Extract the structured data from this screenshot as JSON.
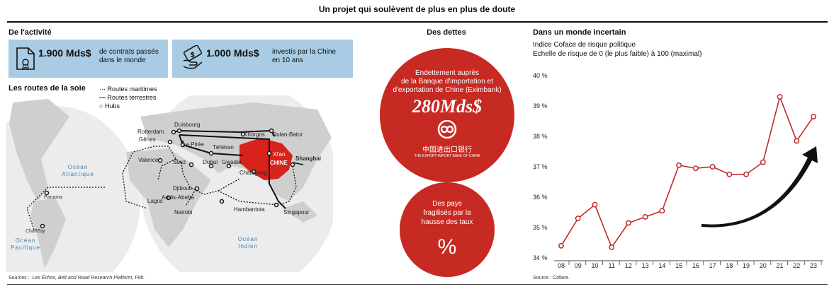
{
  "title": "Un projet qui soulèvent de plus en plus de doute",
  "activity": {
    "heading": "De l'activité",
    "stat1_value": "1.900 Mds$",
    "stat1_text_line1": "de contrats passés",
    "stat1_text_line2": "dans le monde",
    "stat2_value": "1.000 Mds$",
    "stat2_text_line1": "investis par la Chine",
    "stat2_text_line2": "en 10 ans"
  },
  "map": {
    "heading": "Les routes de la soie",
    "legend": {
      "maritime": "Routes maritimes",
      "land": "Routes terrestres",
      "hubs": "Hubs"
    },
    "cities": {
      "duisbourg": "Duisbourg",
      "rotterdam": "Rotterdam",
      "genes": "Gênes",
      "lepiree": "Le Pirée",
      "khorgos": "Khorgos",
      "oulanbator": "Oulan-Bator",
      "teheran": "Téhéran",
      "xian": "Xi'an",
      "shanghai": "Shanghai",
      "valence": "Valence",
      "suez": "Suez",
      "dubai": "Dubaï",
      "gwadar": "Gwadar",
      "chittagong": "Chittagong",
      "djibouti": "Djibouti",
      "addis": "Addis-Abeba",
      "lagos": "Lagos",
      "nairobi": "Nairobi",
      "hambantota": "Hambantota",
      "singapour": "Singapour",
      "panama": "Panama",
      "chancay": "Chancay",
      "chine": "CHINE"
    },
    "oceans": {
      "atl1": "Océan",
      "atl2": "Atlantique",
      "pac1": "Océan",
      "pac2": "Pacifique",
      "ind1": "Océan",
      "ind2": "Indien"
    }
  },
  "sources_left": {
    "label": "Sources :",
    "text": "Les Échos, Belt and Road Research Platform, FMI."
  },
  "debts": {
    "heading": "Des dettes",
    "circle1_line1": "Endettement auprès",
    "circle1_line2": "de la Banque d'importation et",
    "circle1_line3": "d'exportation de Chine (Eximbank)",
    "circle1_value": "280Mds$",
    "bank_cn": "中国进出口银行",
    "bank_en": "THE EXPORT-IMPORT BANK OF CHINA",
    "circle2_line1": "Des pays",
    "circle2_line2": "fragilisés par la",
    "circle2_line3": "hausse des taux",
    "percent_icon": "%"
  },
  "colors": {
    "red": "#c72a23",
    "blue": "#a9cbe4",
    "china": "#d8221c",
    "line": "#c0282a"
  },
  "chart_section": {
    "heading": "Dans un monde incertain",
    "sub1": "Indice Coface de risque politique",
    "sub2": "Echelle de risque de 0 (le plus faible) à 100 (maximal)",
    "source": "Source : Coface."
  },
  "chart_data": {
    "type": "line",
    "title": "Dans un monde incertain",
    "x": [
      "08",
      "09",
      "10",
      "11",
      "12",
      "13",
      "14",
      "15",
      "16",
      "17",
      "18",
      "19",
      "20",
      "21",
      "22",
      "23"
    ],
    "series": [
      {
        "values": [
          34.4,
          35.3,
          35.75,
          34.35,
          35.15,
          35.35,
          35.55,
          37.05,
          36.95,
          37.0,
          36.75,
          36.75,
          37.15,
          39.3,
          37.85,
          38.65
        ]
      }
    ],
    "ylim": [
      34,
      40
    ],
    "yticks": [
      "34 %",
      "35 %",
      "36 %",
      "37 %",
      "38 %",
      "39 %",
      "40 %"
    ],
    "grid": false,
    "annotation": "upward arrow"
  }
}
